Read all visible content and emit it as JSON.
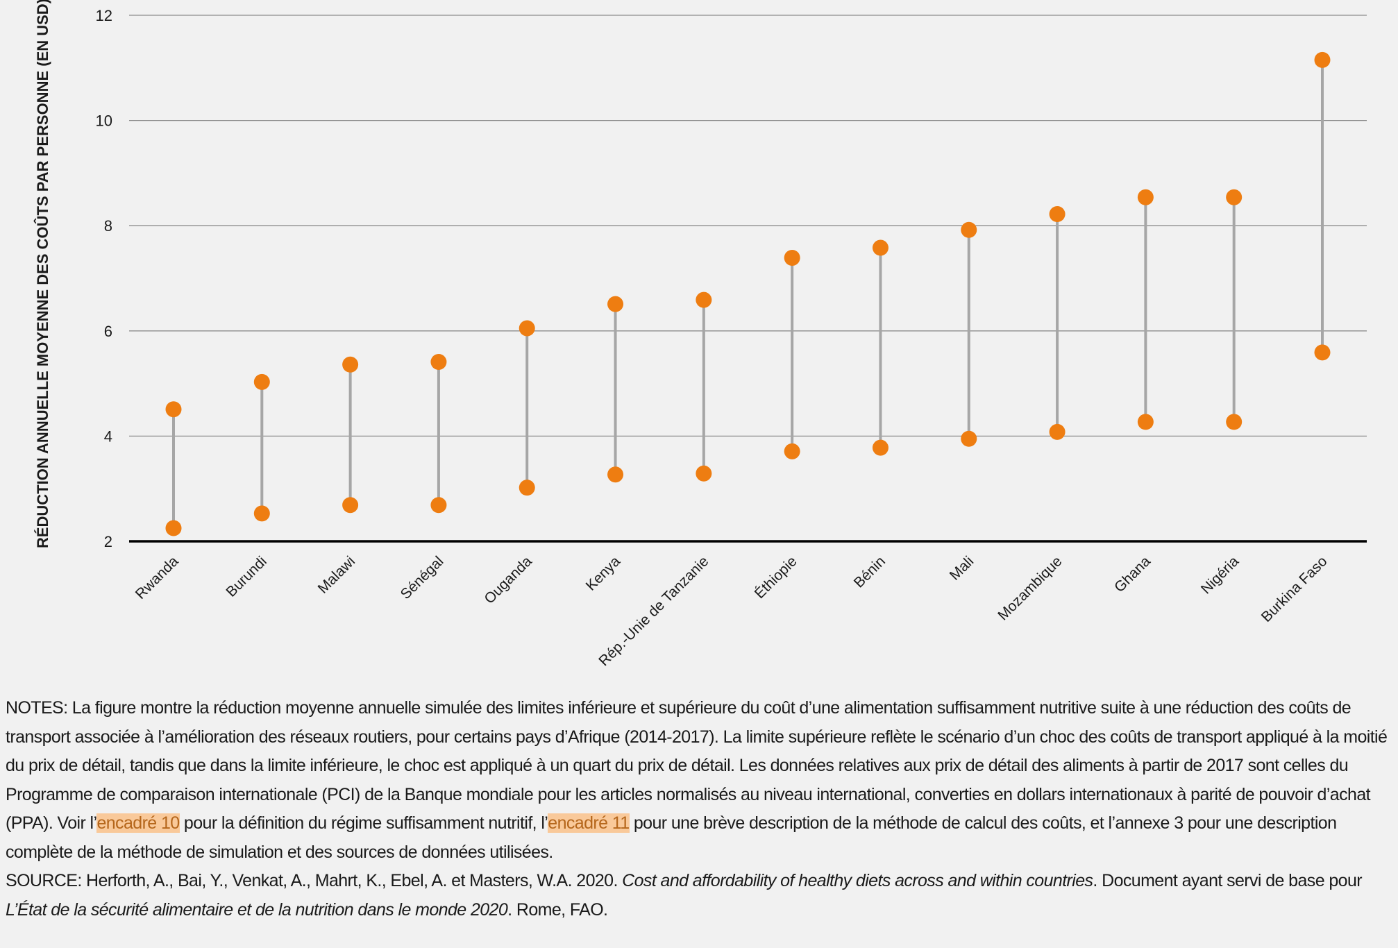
{
  "chart_data": {
    "type": "dumbbell",
    "ylabel": "RÉDUCTION ANNUELLE MOYENNE DES COÛTS PAR PERSONNE (EN USD)",
    "xlabel": "",
    "ylim": [
      2,
      12
    ],
    "yticks": [
      2,
      4,
      6,
      8,
      10,
      12
    ],
    "grid": true,
    "categories": [
      "Rwanda",
      "Burundi",
      "Malawi",
      "Sénégal",
      "Ouganda",
      "Kenya",
      "Rép.-Unie de Tanzanie",
      "Éthiopie",
      "Bénin",
      "Mali",
      "Mozambique",
      "Ghana",
      "Nigéria",
      "Burkina Faso"
    ],
    "series": [
      {
        "name": "Limite supérieure",
        "values": [
          4.51,
          5.03,
          5.36,
          5.41,
          6.05,
          6.51,
          6.59,
          7.39,
          7.58,
          7.92,
          8.22,
          8.54,
          8.54,
          11.15
        ]
      },
      {
        "name": "Limite inférieure",
        "values": [
          2.25,
          2.53,
          2.69,
          2.69,
          3.02,
          3.27,
          3.29,
          3.71,
          3.78,
          3.95,
          4.08,
          4.27,
          4.27,
          5.59
        ]
      }
    ],
    "colors": {
      "point": "#ee7d11",
      "connector": "#a6a6a6",
      "grid": "#8c8c8c",
      "axis": "#000000"
    }
  },
  "notes": {
    "part1": "NOTES: La figure montre la réduction moyenne annuelle simulée des limites inférieure et supérieure du coût d’une alimentation suffisamment nutritive suite à une réduction des coûts de transport associée à l’amélioration des réseaux routiers, pour certains pays d’Afrique (2014-2017). La limite supérieure reflète le scénario d’un choc des coûts de transport appliqué à la moitié du prix de détail, tandis que dans la limite inférieure, le choc est appliqué à un quart du prix de détail. Les données relatives aux prix de détail des aliments à partir de 2017 sont celles du Programme de comparaison internationale (PCI) de la Banque mondiale pour les articles normalisés au niveau international, converties en dollars internationaux à parité de pouvoir d’achat (PPA). Voir l’",
    "link1": "encadré 10",
    "part2": " pour la définition du régime suffisamment nutritif, l’",
    "link2": "encadré 11",
    "part3": " pour une brève description de la méthode de calcul des coûts, et l’annexe 3 pour une description complète de la méthode de simulation et des sources de données utilisées."
  },
  "source": {
    "part1": "SOURCE: Herforth, A., Bai, Y., Venkat, A., Mahrt, K., Ebel, A. et Masters, W.A. 2020. ",
    "italic1": "Cost and affordability of healthy diets across and within countries",
    "part2": ". Document ayant servi de base pour ",
    "italic2": "L’État de la sécurité alimentaire et de la nutrition dans le monde 2020",
    "part3": ". Rome, FAO."
  }
}
